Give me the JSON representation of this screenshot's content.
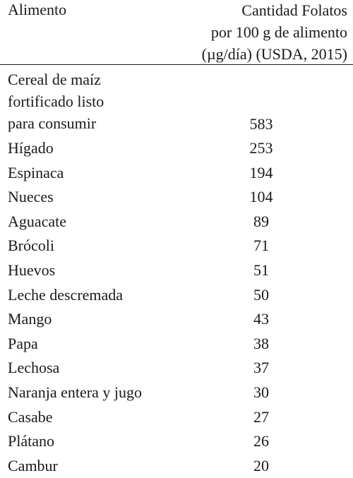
{
  "header": {
    "col1": "Alimento",
    "col2_line1": "Cantidad Folatos",
    "col2_line2": "por 100 g de alimento",
    "col2_line3": "(µg/día) (USDA, 2015)"
  },
  "first_row": {
    "name_line1": "Cereal de maíz",
    "name_line2": "fortificado listo",
    "name_line3": "para consumir",
    "value": "583"
  },
  "rows": [
    {
      "name": "Hígado",
      "value": "253"
    },
    {
      "name": "Espinaca",
      "value": "194"
    },
    {
      "name": "Nueces",
      "value": "104"
    },
    {
      "name": "Aguacate",
      "value": "89"
    },
    {
      "name": "Brócoli",
      "value": "71"
    },
    {
      "name": "Huevos",
      "value": "51"
    },
    {
      "name": "Leche descremada",
      "value": "50"
    },
    {
      "name": "Mango",
      "value": "43"
    },
    {
      "name": "Papa",
      "value": "38"
    },
    {
      "name": "Lechosa",
      "value": "37"
    },
    {
      "name": "Naranja entera y jugo",
      "value": "30"
    },
    {
      "name": "Casabe",
      "value": "27"
    },
    {
      "name": "Plátano",
      "value": "26"
    },
    {
      "name": "Cambur",
      "value": "20"
    }
  ]
}
